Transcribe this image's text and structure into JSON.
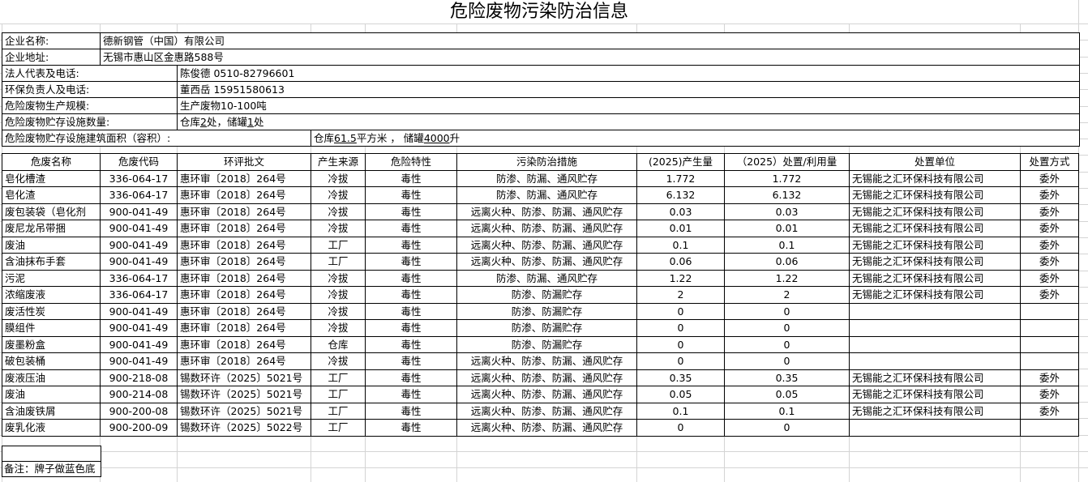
{
  "title": "危险废物污染防治信息",
  "info": {
    "company_name_label": "企业名称:",
    "company_name": "德新钢管（中国）有限公司",
    "address_label": "企业地址:",
    "address": "无锡市惠山区金惠路588号",
    "legal_rep_label": "法人代表及电话:",
    "legal_rep": "陈俊德 0510-82796601",
    "env_contact_label": "环保负责人及电话:",
    "env_contact": "董西岳 15951580613",
    "scale_label": "危险废物生产规模:",
    "scale": "生产废物10-100吨",
    "facility_count_label": "危险废物贮存设施数量:",
    "facility_count": {
      "p1": "仓库",
      "warehouse_count": "2",
      "p2": "处，储罐",
      "tank_count": "1",
      "p3": "处"
    },
    "facility_area_label": "危险废物贮存设施建筑面积（容积）:",
    "facility_area": {
      "p1": "仓库",
      "warehouse_area": "61.5",
      "p2": "平方米 ， 储罐",
      "tank_volume": "4000",
      "p3": "升"
    }
  },
  "table": {
    "headers": [
      "危废名称",
      "危废代码",
      "环评批文",
      "产生来源",
      "危险特性",
      "污染防治措施",
      "(2025)产生量",
      "（2025）处置/利用量",
      "处置单位",
      "处置方式"
    ],
    "rows": [
      [
        "皂化槽渣",
        "336-064-17",
        "惠环审〔2018〕264号",
        "冷拔",
        "毒性",
        "防渗、防漏、通风贮存",
        "1.772",
        "1.772",
        "无锡能之汇环保科技有限公司",
        "委外"
      ],
      [
        "皂化渣",
        "336-064-17",
        "惠环审〔2018〕264号",
        "冷拔",
        "毒性",
        "防渗、防漏、通风贮存",
        "6.132",
        "6.132",
        "无锡能之汇环保科技有限公司",
        "委外"
      ],
      [
        "废包装袋（皂化剂",
        "900-041-49",
        "惠环审〔2018〕264号",
        "冷拔",
        "毒性",
        "远离火种、防渗、防漏、通风贮存",
        "0.03",
        "0.03",
        "无锡能之汇环保科技有限公司",
        "委外"
      ],
      [
        "废尼龙吊带捆",
        "900-041-49",
        "惠环审〔2018〕264号",
        "冷拔",
        "毒性",
        "远离火种、防渗、防漏、通风贮存",
        "0.01",
        "0.01",
        "无锡能之汇环保科技有限公司",
        "委外"
      ],
      [
        "废油",
        "900-041-49",
        "惠环审〔2018〕264号",
        "工厂",
        "毒性",
        "远离火种、防渗、防漏、通风贮存",
        "0.1",
        "0.1",
        "无锡能之汇环保科技有限公司",
        "委外"
      ],
      [
        "含油抹布手套",
        "900-041-49",
        "惠环审〔2018〕264号",
        "工厂",
        "毒性",
        "远离火种、防渗、防漏、通风贮存",
        "0.06",
        "0.06",
        "无锡能之汇环保科技有限公司",
        "委外"
      ],
      [
        "污泥",
        "336-064-17",
        "惠环审〔2018〕264号",
        "冷拔",
        "毒性",
        "防渗、防漏、通风贮存",
        "1.22",
        "1.22",
        "无锡能之汇环保科技有限公司",
        "委外"
      ],
      [
        "浓缩废液",
        "336-064-17",
        "惠环审〔2018〕264号",
        "冷拔",
        "毒性",
        "防渗、防漏贮存",
        "2",
        "2",
        "无锡能之汇环保科技有限公司",
        "委外"
      ],
      [
        "废活性炭",
        "900-041-49",
        "惠环审〔2018〕264号",
        "冷拔",
        "毒性",
        "防渗、防漏贮存",
        "0",
        "0",
        "",
        ""
      ],
      [
        "膜组件",
        "900-041-49",
        "惠环审〔2018〕264号",
        "冷拔",
        "毒性",
        "防渗、防漏贮存",
        "0",
        "0",
        "",
        ""
      ],
      [
        "废墨粉盒",
        "900-041-49",
        "惠环审〔2018〕264号",
        "仓库",
        "毒性",
        "防渗、防漏贮存",
        "0",
        "0",
        "",
        ""
      ],
      [
        "破包装桶",
        "900-041-49",
        "惠环审〔2018〕264号",
        "冷拔",
        "毒性",
        "远离火种、防渗、防漏、通风贮存",
        "0",
        "0",
        "",
        ""
      ],
      [
        "废液压油",
        "900-218-08",
        "锡数环许（2025〕5021号",
        "工厂",
        "毒性",
        "远离火种、防渗、防漏、通风贮存",
        "0.35",
        "0.35",
        "无锡能之汇环保科技有限公司",
        "委外"
      ],
      [
        "废油",
        "900-214-08",
        "锡数环许（2025〕5021号",
        "工厂",
        "毒性",
        "远离火种、防渗、防漏、通风贮存",
        "0.05",
        "0.05",
        "无锡能之汇环保科技有限公司",
        "委外"
      ],
      [
        "含油废铁屑",
        "900-200-08",
        "锡数环许（2025〕5021号",
        "工厂",
        "毒性",
        "远离火种、防渗、防漏、通风贮存",
        "0.1",
        "0.1",
        "无锡能之汇环保科技有限公司",
        "委外"
      ],
      [
        "废乳化液",
        "900-200-09",
        "锡数环许（2025〕5022号",
        "工厂",
        "毒性",
        "远离火种、防渗、防漏、通风贮存",
        "0",
        "0",
        "",
        ""
      ]
    ]
  },
  "note": "备注：牌子做蓝色底",
  "colors": {
    "bracket_accent": "#d07a00",
    "gridline": "#d4d4d4",
    "border": "#000000"
  }
}
